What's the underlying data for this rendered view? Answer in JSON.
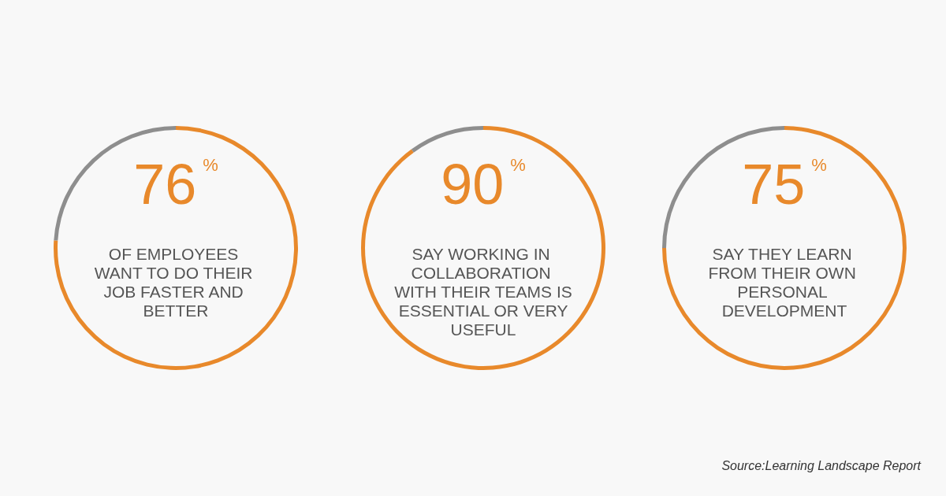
{
  "chart_data": [
    {
      "type": "donut",
      "title": "OF EMPLOYEES WANT TO DO THEIR JOB FASTER AND BETTER",
      "categories": [
        null,
        null
      ],
      "values": [
        76,
        24
      ],
      "colors": [
        "#e8892b",
        "#8e8e8e"
      ],
      "value_labels": [
        "76%",
        null
      ]
    },
    {
      "type": "donut",
      "title": "SAY WORKING IN COLLABORATION WITH THEIR TEAMS IS ESSENTIAL OR VERY USEFUL",
      "categories": [
        null,
        null
      ],
      "values": [
        90,
        10
      ],
      "colors": [
        "#e8892b",
        "#8e8e8e"
      ],
      "value_labels": [
        "90%",
        null
      ]
    },
    {
      "type": "donut",
      "title": "SAY THEY LEARN FROM THEIR OWN PERSONAL DEVELOPMENT",
      "categories": [
        null,
        null
      ],
      "values": [
        75,
        25
      ],
      "colors": [
        "#e8892b",
        "#8e8e8e"
      ],
      "value_labels": [
        "75%",
        null
      ],
      "annotations": [
        "Source:Learning Landscape Report"
      ]
    }
  ]
}
